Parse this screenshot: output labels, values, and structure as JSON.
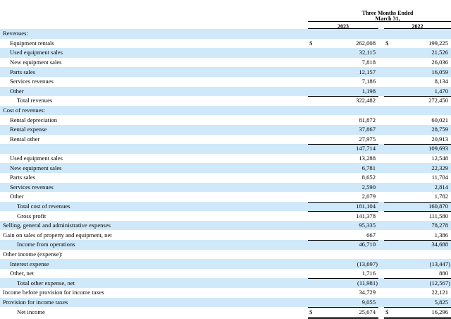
{
  "header": {
    "period_line1": "Three Months Ended",
    "period_line2": "March 31,",
    "year1": "2023",
    "year2": "2022"
  },
  "rows": [
    {
      "label": "Revenues:",
      "indent": 0,
      "v1": "",
      "v2": "",
      "dollar": false
    },
    {
      "label": "Equipment rentals",
      "indent": 1,
      "v1": "262,008",
      "v2": "199,225",
      "dollar": true
    },
    {
      "label": "Used equipment sales",
      "indent": 1,
      "v1": "32,115",
      "v2": "21,526",
      "dollar": false
    },
    {
      "label": "New equipment sales",
      "indent": 1,
      "v1": "7,818",
      "v2": "26,036",
      "dollar": false
    },
    {
      "label": "Parts sales",
      "indent": 1,
      "v1": "12,157",
      "v2": "16,059",
      "dollar": false
    },
    {
      "label": "Services revenues",
      "indent": 1,
      "v1": "7,186",
      "v2": "8,134",
      "dollar": false
    },
    {
      "label": "Other",
      "indent": 1,
      "v1": "1,198",
      "v2": "1,470",
      "dollar": false
    },
    {
      "label": "Total revenues",
      "indent": 2,
      "v1": "322,482",
      "v2": "272,450",
      "dollar": false,
      "rule": true
    },
    {
      "label": "Cost of revenues:",
      "indent": 0,
      "v1": "",
      "v2": "",
      "dollar": false
    },
    {
      "label": "Rental depreciation",
      "indent": 1,
      "v1": "81,872",
      "v2": "60,021",
      "dollar": false
    },
    {
      "label": "Rental expense",
      "indent": 1,
      "v1": "37,867",
      "v2": "28,759",
      "dollar": false
    },
    {
      "label": "Rental other",
      "indent": 1,
      "v1": "27,975",
      "v2": "20,913",
      "dollar": false
    },
    {
      "label": "",
      "indent": 1,
      "v1": "147,714",
      "v2": "109,693",
      "dollar": false,
      "rule": true
    },
    {
      "label": "Used equipment sales",
      "indent": 1,
      "v1": "13,288",
      "v2": "12,548",
      "dollar": false
    },
    {
      "label": "New equipment sales",
      "indent": 1,
      "v1": "6,781",
      "v2": "22,329",
      "dollar": false
    },
    {
      "label": "Parts sales",
      "indent": 1,
      "v1": "8,652",
      "v2": "11,704",
      "dollar": false
    },
    {
      "label": "Services revenues",
      "indent": 1,
      "v1": "2,590",
      "v2": "2,814",
      "dollar": false
    },
    {
      "label": "Other",
      "indent": 1,
      "v1": "2,079",
      "v2": "1,782",
      "dollar": false
    },
    {
      "label": "Total cost of revenues",
      "indent": 2,
      "v1": "181,104",
      "v2": "160,870",
      "dollar": false,
      "rule": true
    },
    {
      "label": "Gross profit",
      "indent": 2,
      "v1": "141,378",
      "v2": "111,580",
      "dollar": false,
      "rule": true
    },
    {
      "label": "Selling, general and administrative expenses",
      "indent": 0,
      "v1": "95,335",
      "v2": "78,278",
      "dollar": false
    },
    {
      "label": "Gain on sales of property and equipment, net",
      "indent": 0,
      "v1": "667",
      "v2": "1,386",
      "dollar": false
    },
    {
      "label": "Income from operations",
      "indent": 2,
      "v1": "46,710",
      "v2": "34,688",
      "dollar": false,
      "rule": true
    },
    {
      "label": "Other income (expense):",
      "indent": 0,
      "v1": "",
      "v2": "",
      "dollar": false
    },
    {
      "label": "Interest expense",
      "indent": 1,
      "v1": "(13,697)",
      "v2": "(13,447)",
      "dollar": false
    },
    {
      "label": "Other, net",
      "indent": 1,
      "v1": "1,716",
      "v2": "880",
      "dollar": false
    },
    {
      "label": "Total other expense, net",
      "indent": 2,
      "v1": "(11,981)",
      "v2": "(12,567)",
      "dollar": false,
      "rule": true
    },
    {
      "label": "Income before provision for income taxes",
      "indent": 0,
      "v1": "34,729",
      "v2": "22,121",
      "dollar": false
    },
    {
      "label": "Provision for income taxes",
      "indent": 0,
      "v1": "9,055",
      "v2": "5,825",
      "dollar": false
    },
    {
      "label": "Net income",
      "indent": 2,
      "v1": "25,674",
      "v2": "16,296",
      "dollar": true,
      "rule": true,
      "double": true
    }
  ],
  "currency_symbol": "$"
}
